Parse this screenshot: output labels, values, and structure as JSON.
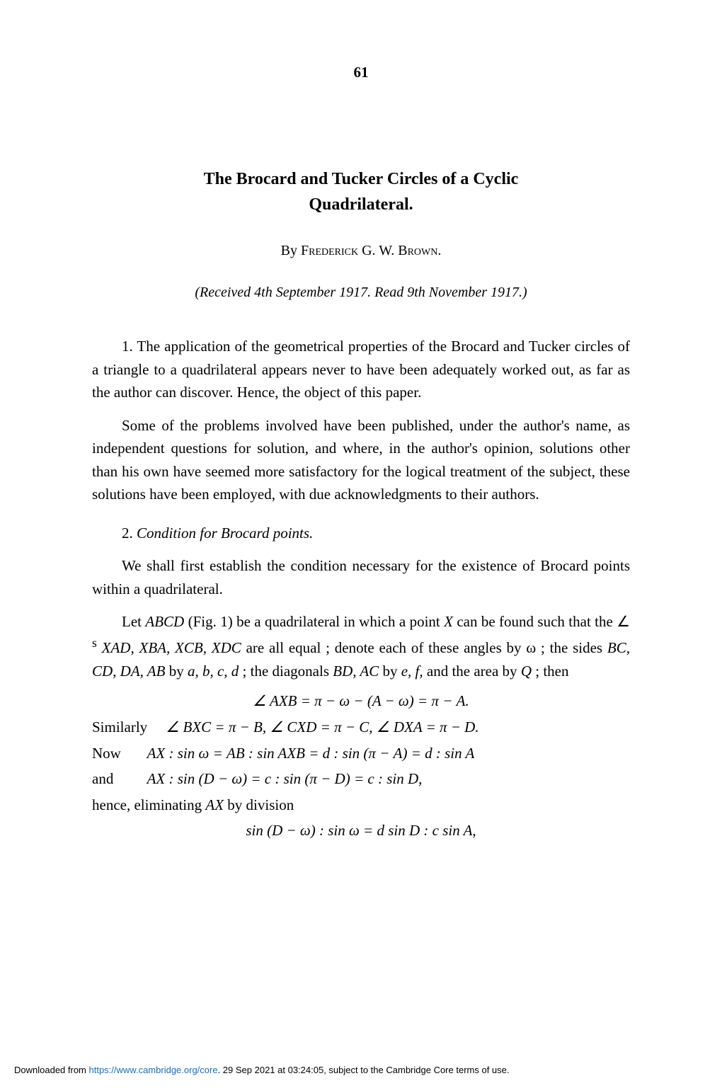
{
  "page_number": "61",
  "title_line1": "The Brocard and Tucker Circles of a Cyclic",
  "title_line2": "Quadrilateral.",
  "author_by": "By ",
  "author_name": "Frederick G. W. Brown.",
  "received": "(Received 4th September 1917.   Read 9th November 1917.)",
  "para1": "1. The application of the geometrical properties of the Brocard and Tucker circles of a triangle to a quadrilateral appears never to have been adequately worked out, as far as the author can discover.   Hence, the object of this paper.",
  "para2": "Some of the problems involved have been published, under the author's name, as independent questions for solution, and where, in the author's opinion, solutions other than his own have seemed more satisfactory for the logical treatment of the subject, these solutions have been employed, with due acknowledgments to their authors.",
  "section2_num": "2. ",
  "section2_title": "Condition for Brocard points.",
  "para3": "We shall first establish the condition necessary for the existence of Brocard points within a quadrilateral.",
  "para4_a": "Let ",
  "para4_abcd": "ABCD",
  "para4_b": " (Fig. 1) be a quadrilateral in which a point ",
  "para4_x": "X",
  "para4_c": " can be found such that the  ∠ ",
  "para4_sup": "s",
  "para4_d": " ",
  "para4_angles": "XAD, XBA, XCB, XDC",
  "para4_e": " are all equal ; denote each of these angles by ω ; the sides ",
  "para4_sides": "BC, CD, DA, AB",
  "para4_f": " by ",
  "para4_abcd2": "a, b, c, d",
  "para4_g": " ; the diagonals ",
  "para4_diag": "BD, AC",
  "para4_h": " by ",
  "para4_ef": "e, f,",
  "para4_i": " and the area by ",
  "para4_q": "Q",
  "para4_j": " ;  then",
  "math1": "∠ AXB = π − ω − (A − ω) = π − A.",
  "math2_label": "Similarly",
  "math2": "∠ BXC = π − B,   ∠ CXD = π − C,   ∠ DXA = π − D.",
  "math3_label": "Now",
  "math3": "AX : sin ω = AB : sin AXB = d : sin (π − A) = d : sin A",
  "math4_label": "and",
  "math4": "AX : sin (D − ω) = c : sin (π − D) = c : sin D,",
  "elim": "hence, eliminating ",
  "elim_ax": "AX",
  "elim2": " by division",
  "math5": "sin (D − ω) : sin ω = d sin D : c sin A,",
  "footer_a": "Downloaded from ",
  "footer_link": "https://www.cambridge.org/core",
  "footer_b": ". 29 Sep 2021 at 03:24:05, subject to the Cambridge Core terms of use."
}
